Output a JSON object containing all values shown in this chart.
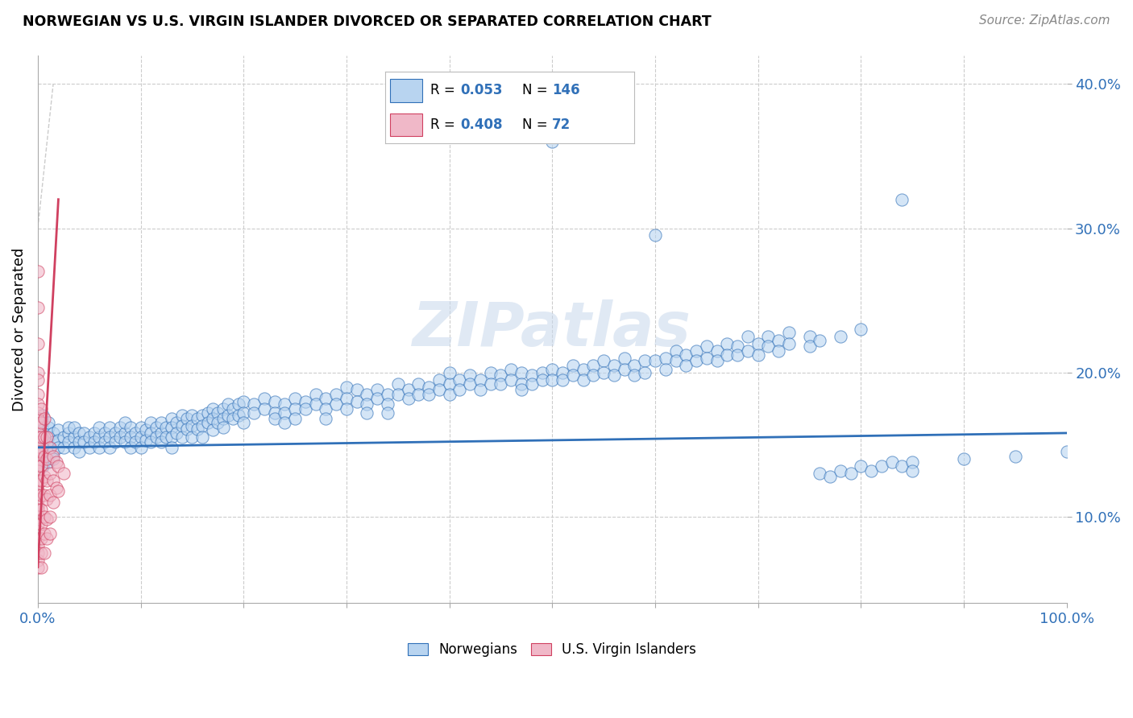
{
  "title": "NORWEGIAN VS U.S. VIRGIN ISLANDER DIVORCED OR SEPARATED CORRELATION CHART",
  "source": "Source: ZipAtlas.com",
  "ylabel": "Divorced or Separated",
  "xlim": [
    0,
    1.0
  ],
  "ylim": [
    0.04,
    0.42
  ],
  "ytick_labels": [
    "10.0%",
    "20.0%",
    "30.0%",
    "40.0%"
  ],
  "yticks": [
    0.1,
    0.2,
    0.3,
    0.4
  ],
  "norwegian_color": "#b8d4f0",
  "virgin_color": "#f0b8c8",
  "trend_norwegian_color": "#3070b8",
  "trend_virgin_color": "#d04060",
  "R_norwegian": 0.053,
  "N_norwegian": 146,
  "R_virgin": 0.408,
  "N_virgin": 72,
  "watermark": "ZIPatlas",
  "nor_trend_x": [
    0.0,
    1.0
  ],
  "nor_trend_y": [
    0.148,
    0.158
  ],
  "vir_trend_x": [
    0.0,
    0.02
  ],
  "vir_trend_y": [
    0.065,
    0.32
  ],
  "norwegian_points": [
    [
      0.005,
      0.17
    ],
    [
      0.005,
      0.165
    ],
    [
      0.005,
      0.16
    ],
    [
      0.005,
      0.155
    ],
    [
      0.005,
      0.15
    ],
    [
      0.005,
      0.145
    ],
    [
      0.005,
      0.14
    ],
    [
      0.005,
      0.135
    ],
    [
      0.005,
      0.158
    ],
    [
      0.01,
      0.162
    ],
    [
      0.01,
      0.155
    ],
    [
      0.01,
      0.148
    ],
    [
      0.01,
      0.145
    ],
    [
      0.01,
      0.138
    ],
    [
      0.01,
      0.165
    ],
    [
      0.015,
      0.158
    ],
    [
      0.015,
      0.152
    ],
    [
      0.015,
      0.145
    ],
    [
      0.015,
      0.14
    ],
    [
      0.02,
      0.16
    ],
    [
      0.02,
      0.153
    ],
    [
      0.02,
      0.148
    ],
    [
      0.025,
      0.155
    ],
    [
      0.025,
      0.148
    ],
    [
      0.03,
      0.158
    ],
    [
      0.03,
      0.152
    ],
    [
      0.03,
      0.162
    ],
    [
      0.035,
      0.155
    ],
    [
      0.035,
      0.148
    ],
    [
      0.035,
      0.162
    ],
    [
      0.04,
      0.158
    ],
    [
      0.04,
      0.152
    ],
    [
      0.04,
      0.145
    ],
    [
      0.045,
      0.158
    ],
    [
      0.045,
      0.152
    ],
    [
      0.05,
      0.155
    ],
    [
      0.05,
      0.148
    ],
    [
      0.055,
      0.158
    ],
    [
      0.055,
      0.152
    ],
    [
      0.06,
      0.155
    ],
    [
      0.06,
      0.148
    ],
    [
      0.06,
      0.162
    ],
    [
      0.065,
      0.158
    ],
    [
      0.065,
      0.152
    ],
    [
      0.07,
      0.162
    ],
    [
      0.07,
      0.155
    ],
    [
      0.07,
      0.148
    ],
    [
      0.075,
      0.158
    ],
    [
      0.075,
      0.152
    ],
    [
      0.08,
      0.162
    ],
    [
      0.08,
      0.155
    ],
    [
      0.085,
      0.158
    ],
    [
      0.085,
      0.152
    ],
    [
      0.085,
      0.165
    ],
    [
      0.09,
      0.162
    ],
    [
      0.09,
      0.155
    ],
    [
      0.09,
      0.148
    ],
    [
      0.095,
      0.158
    ],
    [
      0.095,
      0.152
    ],
    [
      0.1,
      0.162
    ],
    [
      0.1,
      0.155
    ],
    [
      0.1,
      0.148
    ],
    [
      0.105,
      0.16
    ],
    [
      0.105,
      0.153
    ],
    [
      0.11,
      0.165
    ],
    [
      0.11,
      0.158
    ],
    [
      0.11,
      0.152
    ],
    [
      0.115,
      0.162
    ],
    [
      0.115,
      0.155
    ],
    [
      0.12,
      0.158
    ],
    [
      0.12,
      0.152
    ],
    [
      0.12,
      0.165
    ],
    [
      0.125,
      0.162
    ],
    [
      0.125,
      0.155
    ],
    [
      0.13,
      0.168
    ],
    [
      0.13,
      0.162
    ],
    [
      0.13,
      0.155
    ],
    [
      0.13,
      0.148
    ],
    [
      0.135,
      0.165
    ],
    [
      0.135,
      0.158
    ],
    [
      0.14,
      0.17
    ],
    [
      0.14,
      0.163
    ],
    [
      0.14,
      0.155
    ],
    [
      0.145,
      0.168
    ],
    [
      0.145,
      0.161
    ],
    [
      0.15,
      0.17
    ],
    [
      0.15,
      0.163
    ],
    [
      0.15,
      0.155
    ],
    [
      0.155,
      0.168
    ],
    [
      0.155,
      0.161
    ],
    [
      0.16,
      0.17
    ],
    [
      0.16,
      0.163
    ],
    [
      0.16,
      0.155
    ],
    [
      0.165,
      0.172
    ],
    [
      0.165,
      0.165
    ],
    [
      0.17,
      0.175
    ],
    [
      0.17,
      0.168
    ],
    [
      0.17,
      0.16
    ],
    [
      0.175,
      0.172
    ],
    [
      0.175,
      0.165
    ],
    [
      0.18,
      0.175
    ],
    [
      0.18,
      0.168
    ],
    [
      0.18,
      0.162
    ],
    [
      0.185,
      0.178
    ],
    [
      0.185,
      0.17
    ],
    [
      0.19,
      0.175
    ],
    [
      0.19,
      0.168
    ],
    [
      0.195,
      0.178
    ],
    [
      0.195,
      0.17
    ],
    [
      0.2,
      0.18
    ],
    [
      0.2,
      0.172
    ],
    [
      0.2,
      0.165
    ],
    [
      0.21,
      0.178
    ],
    [
      0.21,
      0.172
    ],
    [
      0.22,
      0.182
    ],
    [
      0.22,
      0.175
    ],
    [
      0.23,
      0.18
    ],
    [
      0.23,
      0.172
    ],
    [
      0.23,
      0.168
    ],
    [
      0.24,
      0.178
    ],
    [
      0.24,
      0.172
    ],
    [
      0.24,
      0.165
    ],
    [
      0.25,
      0.182
    ],
    [
      0.25,
      0.175
    ],
    [
      0.25,
      0.168
    ],
    [
      0.26,
      0.18
    ],
    [
      0.26,
      0.175
    ],
    [
      0.27,
      0.185
    ],
    [
      0.27,
      0.178
    ],
    [
      0.28,
      0.182
    ],
    [
      0.28,
      0.175
    ],
    [
      0.28,
      0.168
    ],
    [
      0.29,
      0.185
    ],
    [
      0.29,
      0.178
    ],
    [
      0.3,
      0.19
    ],
    [
      0.3,
      0.182
    ],
    [
      0.3,
      0.175
    ],
    [
      0.31,
      0.188
    ],
    [
      0.31,
      0.18
    ],
    [
      0.32,
      0.185
    ],
    [
      0.32,
      0.178
    ],
    [
      0.32,
      0.172
    ],
    [
      0.33,
      0.188
    ],
    [
      0.33,
      0.182
    ],
    [
      0.34,
      0.185
    ],
    [
      0.34,
      0.178
    ],
    [
      0.34,
      0.172
    ],
    [
      0.35,
      0.192
    ],
    [
      0.35,
      0.185
    ],
    [
      0.36,
      0.188
    ],
    [
      0.36,
      0.182
    ],
    [
      0.37,
      0.192
    ],
    [
      0.37,
      0.185
    ],
    [
      0.38,
      0.19
    ],
    [
      0.38,
      0.185
    ],
    [
      0.39,
      0.195
    ],
    [
      0.39,
      0.188
    ],
    [
      0.4,
      0.192
    ],
    [
      0.4,
      0.185
    ],
    [
      0.4,
      0.2
    ],
    [
      0.41,
      0.195
    ],
    [
      0.41,
      0.188
    ],
    [
      0.42,
      0.198
    ],
    [
      0.42,
      0.192
    ],
    [
      0.43,
      0.195
    ],
    [
      0.43,
      0.188
    ],
    [
      0.44,
      0.2
    ],
    [
      0.44,
      0.192
    ],
    [
      0.45,
      0.198
    ],
    [
      0.45,
      0.192
    ],
    [
      0.46,
      0.202
    ],
    [
      0.46,
      0.195
    ],
    [
      0.47,
      0.2
    ],
    [
      0.47,
      0.192
    ],
    [
      0.47,
      0.188
    ],
    [
      0.48,
      0.198
    ],
    [
      0.48,
      0.192
    ],
    [
      0.49,
      0.2
    ],
    [
      0.49,
      0.195
    ],
    [
      0.5,
      0.36
    ],
    [
      0.5,
      0.202
    ],
    [
      0.5,
      0.195
    ],
    [
      0.51,
      0.2
    ],
    [
      0.51,
      0.195
    ],
    [
      0.52,
      0.205
    ],
    [
      0.52,
      0.198
    ],
    [
      0.53,
      0.202
    ],
    [
      0.53,
      0.195
    ],
    [
      0.54,
      0.205
    ],
    [
      0.54,
      0.198
    ],
    [
      0.55,
      0.208
    ],
    [
      0.55,
      0.2
    ],
    [
      0.56,
      0.205
    ],
    [
      0.56,
      0.198
    ],
    [
      0.57,
      0.21
    ],
    [
      0.57,
      0.202
    ],
    [
      0.58,
      0.205
    ],
    [
      0.58,
      0.198
    ],
    [
      0.59,
      0.208
    ],
    [
      0.59,
      0.2
    ],
    [
      0.6,
      0.295
    ],
    [
      0.6,
      0.208
    ],
    [
      0.61,
      0.21
    ],
    [
      0.61,
      0.202
    ],
    [
      0.62,
      0.215
    ],
    [
      0.62,
      0.208
    ],
    [
      0.63,
      0.212
    ],
    [
      0.63,
      0.205
    ],
    [
      0.64,
      0.215
    ],
    [
      0.64,
      0.208
    ],
    [
      0.65,
      0.218
    ],
    [
      0.65,
      0.21
    ],
    [
      0.66,
      0.215
    ],
    [
      0.66,
      0.208
    ],
    [
      0.67,
      0.22
    ],
    [
      0.67,
      0.212
    ],
    [
      0.68,
      0.218
    ],
    [
      0.68,
      0.212
    ],
    [
      0.69,
      0.225
    ],
    [
      0.69,
      0.215
    ],
    [
      0.7,
      0.22
    ],
    [
      0.7,
      0.212
    ],
    [
      0.71,
      0.225
    ],
    [
      0.71,
      0.218
    ],
    [
      0.72,
      0.222
    ],
    [
      0.72,
      0.215
    ],
    [
      0.73,
      0.228
    ],
    [
      0.73,
      0.22
    ],
    [
      0.75,
      0.225
    ],
    [
      0.75,
      0.218
    ],
    [
      0.76,
      0.13
    ],
    [
      0.76,
      0.222
    ],
    [
      0.77,
      0.128
    ],
    [
      0.78,
      0.132
    ],
    [
      0.78,
      0.225
    ],
    [
      0.79,
      0.13
    ],
    [
      0.8,
      0.135
    ],
    [
      0.8,
      0.23
    ],
    [
      0.81,
      0.132
    ],
    [
      0.82,
      0.135
    ],
    [
      0.83,
      0.138
    ],
    [
      0.84,
      0.32
    ],
    [
      0.84,
      0.135
    ],
    [
      0.85,
      0.138
    ],
    [
      0.85,
      0.132
    ],
    [
      0.9,
      0.14
    ],
    [
      0.95,
      0.142
    ],
    [
      1.0,
      0.145
    ]
  ],
  "virgin_points": [
    [
      0.0,
      0.27
    ],
    [
      0.0,
      0.245
    ],
    [
      0.0,
      0.22
    ],
    [
      0.0,
      0.2
    ],
    [
      0.0,
      0.195
    ],
    [
      0.0,
      0.185
    ],
    [
      0.0,
      0.178
    ],
    [
      0.0,
      0.172
    ],
    [
      0.0,
      0.168
    ],
    [
      0.0,
      0.162
    ],
    [
      0.0,
      0.158
    ],
    [
      0.0,
      0.155
    ],
    [
      0.0,
      0.152
    ],
    [
      0.0,
      0.148
    ],
    [
      0.0,
      0.145
    ],
    [
      0.0,
      0.14
    ],
    [
      0.0,
      0.138
    ],
    [
      0.0,
      0.135
    ],
    [
      0.0,
      0.132
    ],
    [
      0.0,
      0.128
    ],
    [
      0.0,
      0.125
    ],
    [
      0.0,
      0.122
    ],
    [
      0.0,
      0.118
    ],
    [
      0.0,
      0.115
    ],
    [
      0.0,
      0.112
    ],
    [
      0.0,
      0.108
    ],
    [
      0.0,
      0.105
    ],
    [
      0.0,
      0.1
    ],
    [
      0.0,
      0.095
    ],
    [
      0.0,
      0.09
    ],
    [
      0.0,
      0.085
    ],
    [
      0.0,
      0.08
    ],
    [
      0.0,
      0.075
    ],
    [
      0.0,
      0.07
    ],
    [
      0.0,
      0.065
    ],
    [
      0.003,
      0.175
    ],
    [
      0.003,
      0.165
    ],
    [
      0.003,
      0.155
    ],
    [
      0.003,
      0.145
    ],
    [
      0.003,
      0.135
    ],
    [
      0.003,
      0.125
    ],
    [
      0.003,
      0.115
    ],
    [
      0.003,
      0.105
    ],
    [
      0.003,
      0.095
    ],
    [
      0.003,
      0.085
    ],
    [
      0.003,
      0.075
    ],
    [
      0.003,
      0.065
    ],
    [
      0.006,
      0.168
    ],
    [
      0.006,
      0.155
    ],
    [
      0.006,
      0.142
    ],
    [
      0.006,
      0.128
    ],
    [
      0.006,
      0.115
    ],
    [
      0.006,
      0.1
    ],
    [
      0.006,
      0.088
    ],
    [
      0.006,
      0.075
    ],
    [
      0.009,
      0.155
    ],
    [
      0.009,
      0.14
    ],
    [
      0.009,
      0.125
    ],
    [
      0.009,
      0.112
    ],
    [
      0.009,
      0.098
    ],
    [
      0.009,
      0.085
    ],
    [
      0.012,
      0.148
    ],
    [
      0.012,
      0.13
    ],
    [
      0.012,
      0.115
    ],
    [
      0.012,
      0.1
    ],
    [
      0.012,
      0.088
    ],
    [
      0.015,
      0.142
    ],
    [
      0.015,
      0.125
    ],
    [
      0.015,
      0.11
    ],
    [
      0.018,
      0.138
    ],
    [
      0.018,
      0.12
    ],
    [
      0.02,
      0.135
    ],
    [
      0.02,
      0.118
    ],
    [
      0.025,
      0.13
    ]
  ]
}
